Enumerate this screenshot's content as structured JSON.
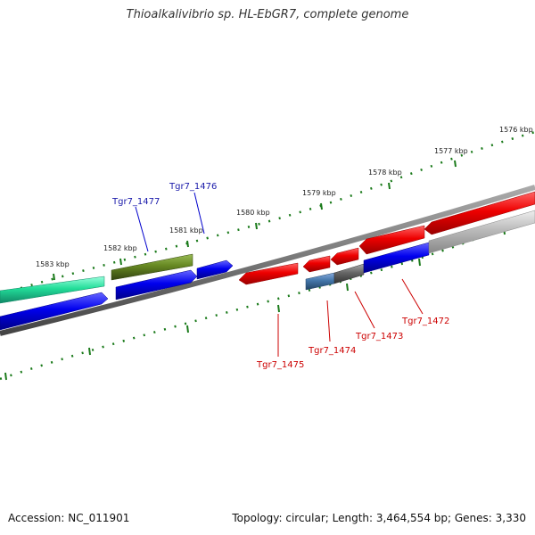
{
  "title": "Thioalkalivibrio sp. HL-EbGR7, complete genome",
  "footer": {
    "accession": "Accession: NC_011901",
    "summary": "Topology: circular; Length: 3,464,554 bp; Genes: 3,330"
  },
  "ticks": [
    {
      "label": "1576 kbp"
    },
    {
      "label": "1577 kbp"
    },
    {
      "label": "1578 kbp"
    },
    {
      "label": "1579 kbp"
    },
    {
      "label": "1580 kbp"
    },
    {
      "label": "1581 kbp"
    },
    {
      "label": "1582 kbp"
    },
    {
      "label": "1583 kbp"
    }
  ],
  "gene_labels": [
    {
      "label": "Tgr7_1476",
      "color": "#1a1aaa"
    },
    {
      "label": "Tgr7_1477",
      "color": "#1a1aaa"
    },
    {
      "label": "Tgr7_1472",
      "color": "#cc0000"
    },
    {
      "label": "Tgr7_1473",
      "color": "#cc0000"
    },
    {
      "label": "Tgr7_1474",
      "color": "#cc0000"
    },
    {
      "label": "Tgr7_1475",
      "color": "#cc0000"
    }
  ],
  "colors": {
    "tick_green": "#1a7a1a",
    "backbone_gray": "#777777",
    "gene_red": "#ee0000",
    "gene_blue": "#0000ee",
    "gene_teal": "#22dd99",
    "gene_olive": "#668822",
    "gene_steel": "#4477aa",
    "gene_darkgray": "#666666",
    "gene_lightgray": "#bbbbbb"
  }
}
